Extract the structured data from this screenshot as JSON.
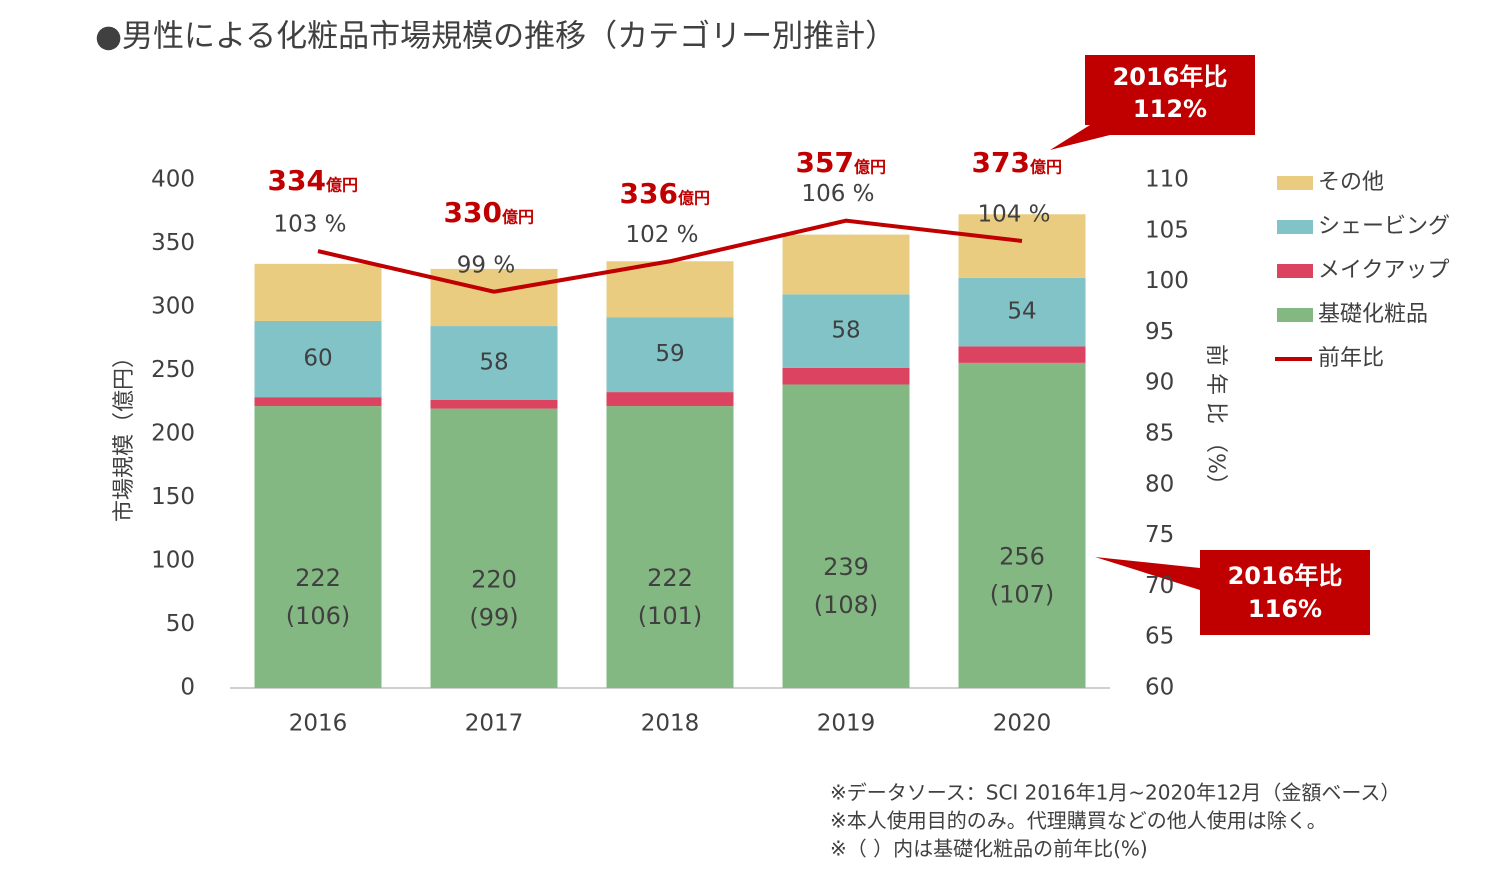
{
  "chart_data": {
    "type": "bar",
    "title": "●男性による化粧品市場規模の推移（カテゴリー別推計）",
    "categories": [
      "2016",
      "2017",
      "2018",
      "2019",
      "2020"
    ],
    "series": [
      {
        "name": "基礎化粧品",
        "color": "#84b882",
        "values": [
          222,
          220,
          222,
          239,
          256
        ],
        "growth_labels": [
          "(106)",
          "(99)",
          "(101)",
          "(108)",
          "(107)"
        ]
      },
      {
        "name": "メイクアップ",
        "color": "#dc4360",
        "values": [
          7,
          7,
          11,
          13,
          13
        ]
      },
      {
        "name": "シェービング",
        "color": "#82c3c8",
        "values": [
          60,
          58,
          59,
          58,
          54
        ]
      },
      {
        "name": "その他",
        "color": "#e9cc80",
        "values": [
          45,
          45,
          44,
          47,
          50
        ]
      },
      {
        "name": "前年比",
        "type": "line",
        "axis": "y2",
        "color": "#c00000",
        "values": [
          103,
          99,
          102,
          106,
          104
        ],
        "value_labels": [
          "103 %",
          "99 %",
          "102 %",
          "106 %",
          "104 %"
        ]
      }
    ],
    "totals": [
      334,
      330,
      336,
      357,
      373
    ],
    "total_unit": "億円",
    "total_color": "#c00000",
    "ylabel": "市場規模（億円）",
    "y2label": "前 年 比 （%）",
    "ylim": [
      0,
      400
    ],
    "yticks": [
      0,
      50,
      100,
      150,
      200,
      250,
      300,
      350,
      400
    ],
    "y2lim": [
      60,
      110
    ],
    "y2ticks": [
      60,
      65,
      70,
      75,
      80,
      85,
      90,
      95,
      100,
      105,
      110
    ],
    "legend": "right",
    "callouts": [
      {
        "lines": [
          "2016年比",
          "112%"
        ]
      },
      {
        "lines": [
          "2016年比",
          "116%"
        ]
      }
    ],
    "notes": [
      "※データソース：SCI  2016年1月~2020年12月（金額ベース）",
      "※本人使用目的のみ。代理購買などの他人使用は除く。",
      "※（ ）内は基礎化粧品の前年比(%)"
    ]
  }
}
